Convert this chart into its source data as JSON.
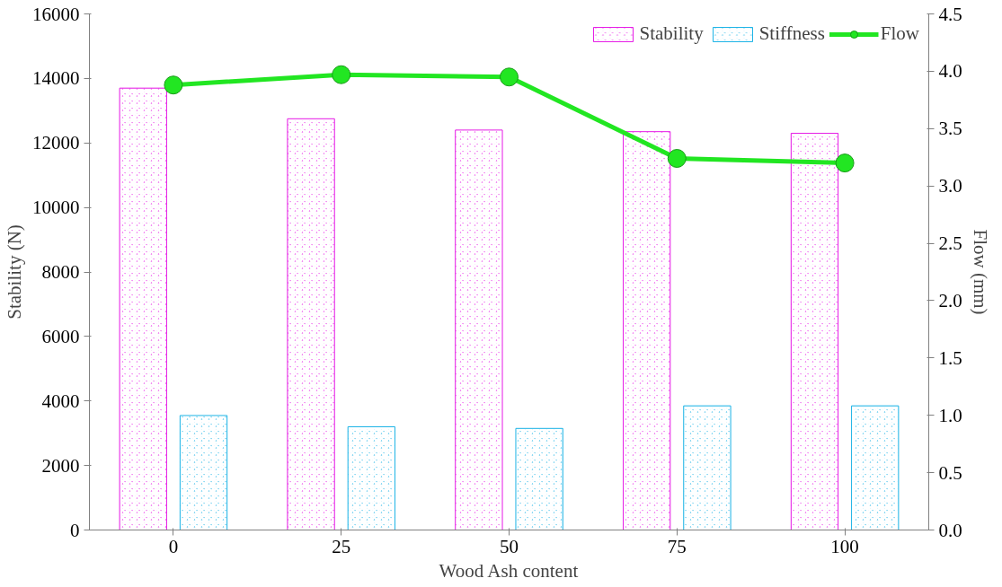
{
  "chart_data": {
    "type": "bar",
    "xlabel": "Wood Ash content",
    "ylabel": "Stability (N)",
    "y2label": "Flow (mm)",
    "categories": [
      "0",
      "25",
      "50",
      "75",
      "100"
    ],
    "series": [
      {
        "name": "Stability",
        "color": "#e61ee6",
        "values": [
          13700,
          12750,
          12400,
          12350,
          12300
        ]
      },
      {
        "name": "Stiffness",
        "color": "#1eb4e6",
        "values": [
          3550,
          3200,
          3150,
          3850,
          3850
        ]
      },
      {
        "name": "Flow",
        "color": "#22e622",
        "type": "line",
        "axis": "y2",
        "values": [
          3.88,
          3.97,
          3.95,
          3.24,
          3.2
        ]
      }
    ],
    "ylim": [
      0,
      16000
    ],
    "yticks": [
      0,
      2000,
      4000,
      6000,
      8000,
      10000,
      12000,
      14000,
      16000
    ],
    "y2lim": [
      0,
      4.5
    ],
    "y2ticks": [
      {
        "value": 0,
        "label": "0.0"
      },
      {
        "value": 0.5,
        "label": "0.5"
      },
      {
        "value": 1,
        "label": "1.0"
      },
      {
        "value": 1.5,
        "label": "1.5"
      },
      {
        "value": 2,
        "label": "2.0"
      },
      {
        "value": 2.5,
        "label": "2.5"
      },
      {
        "value": 3,
        "label": "3.0"
      },
      {
        "value": 3.5,
        "label": "3.5"
      },
      {
        "value": 4,
        "label": "4.0"
      },
      {
        "value": 4.5,
        "label": "4.5"
      }
    ],
    "grid": false,
    "legend": "top right",
    "marker": "circle",
    "line_style": "solid"
  }
}
